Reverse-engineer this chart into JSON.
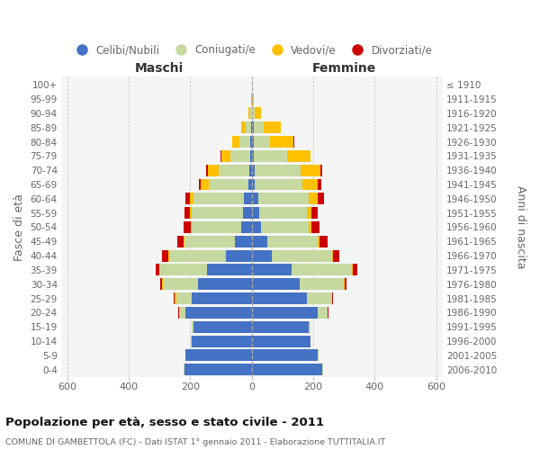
{
  "age_groups": [
    "0-4",
    "5-9",
    "10-14",
    "15-19",
    "20-24",
    "25-29",
    "30-34",
    "35-39",
    "40-44",
    "45-49",
    "50-54",
    "55-59",
    "60-64",
    "65-69",
    "70-74",
    "75-79",
    "80-84",
    "85-89",
    "90-94",
    "95-99",
    "100+"
  ],
  "birth_years": [
    "2006-2010",
    "2001-2005",
    "1996-2000",
    "1991-1995",
    "1986-1990",
    "1981-1985",
    "1976-1980",
    "1971-1975",
    "1966-1970",
    "1961-1965",
    "1956-1960",
    "1951-1955",
    "1946-1950",
    "1941-1945",
    "1936-1940",
    "1931-1935",
    "1926-1930",
    "1921-1925",
    "1916-1920",
    "1911-1915",
    "≤ 1910"
  ],
  "male_celibe": [
    220,
    215,
    195,
    190,
    215,
    195,
    175,
    145,
    85,
    55,
    35,
    30,
    25,
    10,
    8,
    5,
    4,
    2,
    0,
    0,
    0
  ],
  "male_coniugato": [
    2,
    2,
    2,
    5,
    20,
    50,
    115,
    155,
    185,
    165,
    160,
    165,
    165,
    130,
    100,
    65,
    35,
    18,
    5,
    0,
    0
  ],
  "male_vedovo": [
    0,
    0,
    0,
    0,
    2,
    5,
    2,
    2,
    2,
    2,
    3,
    5,
    10,
    25,
    35,
    30,
    25,
    15,
    5,
    1,
    0
  ],
  "male_divorziato": [
    0,
    0,
    0,
    0,
    2,
    3,
    5,
    10,
    20,
    20,
    25,
    18,
    15,
    8,
    5,
    2,
    0,
    0,
    0,
    0,
    0
  ],
  "female_celibe": [
    230,
    215,
    190,
    185,
    215,
    180,
    155,
    130,
    65,
    50,
    30,
    25,
    20,
    10,
    8,
    5,
    5,
    5,
    2,
    0,
    0
  ],
  "female_coniugata": [
    2,
    2,
    2,
    5,
    30,
    80,
    145,
    195,
    195,
    165,
    155,
    155,
    165,
    155,
    150,
    110,
    55,
    35,
    8,
    2,
    0
  ],
  "female_vedova": [
    0,
    0,
    0,
    0,
    2,
    2,
    2,
    3,
    5,
    5,
    10,
    15,
    30,
    50,
    65,
    75,
    75,
    55,
    20,
    3,
    1
  ],
  "female_divorziata": [
    0,
    0,
    0,
    0,
    2,
    3,
    5,
    15,
    20,
    25,
    25,
    18,
    20,
    10,
    5,
    2,
    2,
    0,
    0,
    0,
    0
  ],
  "color_celibe": "#4472c4",
  "color_coniugato": "#c5d9a0",
  "color_vedovo": "#ffc000",
  "color_divorziato": "#cc0000",
  "title": "Popolazione per età, sesso e stato civile - 2011",
  "subtitle": "COMUNE DI GAMBETTOLA (FC) - Dati ISTAT 1° gennaio 2011 - Elaborazione TUTTITALIA.IT",
  "label_maschi": "Maschi",
  "label_femmine": "Femmine",
  "ylabel_left": "Fasce di età",
  "ylabel_right": "Anni di nascita",
  "xlim": 620,
  "xticks": [
    -600,
    -400,
    -200,
    0,
    200,
    400,
    600
  ],
  "xtick_labels": [
    "600",
    "400",
    "200",
    "0",
    "200",
    "400",
    "600"
  ],
  "legend_labels": [
    "Celibi/Nubili",
    "Coniugati/e",
    "Vedovi/e",
    "Divorziati/e"
  ],
  "bg_plot": "#f5f5f5",
  "bg_fig": "#ffffff",
  "grid_color": "#cccccc",
  "text_color": "#666666",
  "title_color": "#111111"
}
